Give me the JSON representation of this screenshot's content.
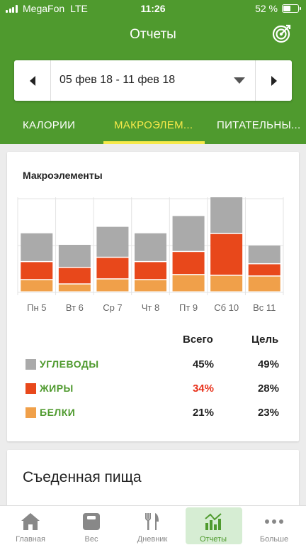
{
  "status_bar": {
    "carrier": "MegaFon",
    "network": "LTE",
    "time": "11:26",
    "battery": "52 %",
    "battery_level": 0.52
  },
  "header": {
    "title": "Отчеты",
    "goal_icon": "target-icon"
  },
  "date_picker": {
    "range": "05 фев 18 - 11 фев 18",
    "prev_icon": "chevron-left-icon",
    "next_icon": "chevron-right-icon",
    "dropdown_icon": "caret-down-icon"
  },
  "tabs": [
    {
      "label": "КАЛОРИИ",
      "active": false
    },
    {
      "label": "МАКРОЭЛЕМ...",
      "active": true
    },
    {
      "label": "ПИТАТЕЛЬНЫ...",
      "active": false
    }
  ],
  "macros_card": {
    "title": "Макроэлементы",
    "columns": {
      "total": "Всего",
      "goal": "Цель"
    },
    "rows": [
      {
        "label": "УГЛЕВОДЫ",
        "color": "#aaaaaa",
        "total": "45%",
        "goal": "49%",
        "highlight": false
      },
      {
        "label": "ЖИРЫ",
        "color": "#e8481b",
        "total": "34%",
        "goal": "28%",
        "highlight": true
      },
      {
        "label": "БЕЛКИ",
        "color": "#f0a04a",
        "total": "21%",
        "goal": "23%",
        "highlight": false
      }
    ]
  },
  "chart_data": {
    "type": "bar",
    "stacked": true,
    "title": "Макроэлементы",
    "categories": [
      "Пн 5",
      "Вт 6",
      "Ср 7",
      "Чт 8",
      "Пт 9",
      "Сб 10",
      "Вс 11"
    ],
    "series": [
      {
        "name": "БЕЛКИ",
        "color": "#f0a04a",
        "values": [
          17,
          11,
          18,
          17,
          24,
          23,
          22
        ]
      },
      {
        "name": "ЖИРЫ",
        "color": "#e8481b",
        "values": [
          25,
          23,
          30,
          25,
          32,
          58,
          17
        ]
      },
      {
        "name": "УГЛЕВОДЫ",
        "color": "#aaaaaa",
        "values": [
          40,
          32,
          43,
          40,
          50,
          51,
          26
        ]
      }
    ],
    "ylim": [
      0,
      132
    ],
    "grid": true,
    "xlabel": "",
    "ylabel": ""
  },
  "food_card": {
    "title": "Съеденная пища"
  },
  "bottom_nav": [
    {
      "label": "Главная",
      "icon": "home-icon",
      "active": false
    },
    {
      "label": "Вес",
      "icon": "scale-icon",
      "active": false
    },
    {
      "label": "Дневник",
      "icon": "fork-knife-icon",
      "active": false
    },
    {
      "label": "Отчеты",
      "icon": "chart-icon",
      "active": true
    },
    {
      "label": "Больше",
      "icon": "more-icon",
      "active": false
    }
  ]
}
